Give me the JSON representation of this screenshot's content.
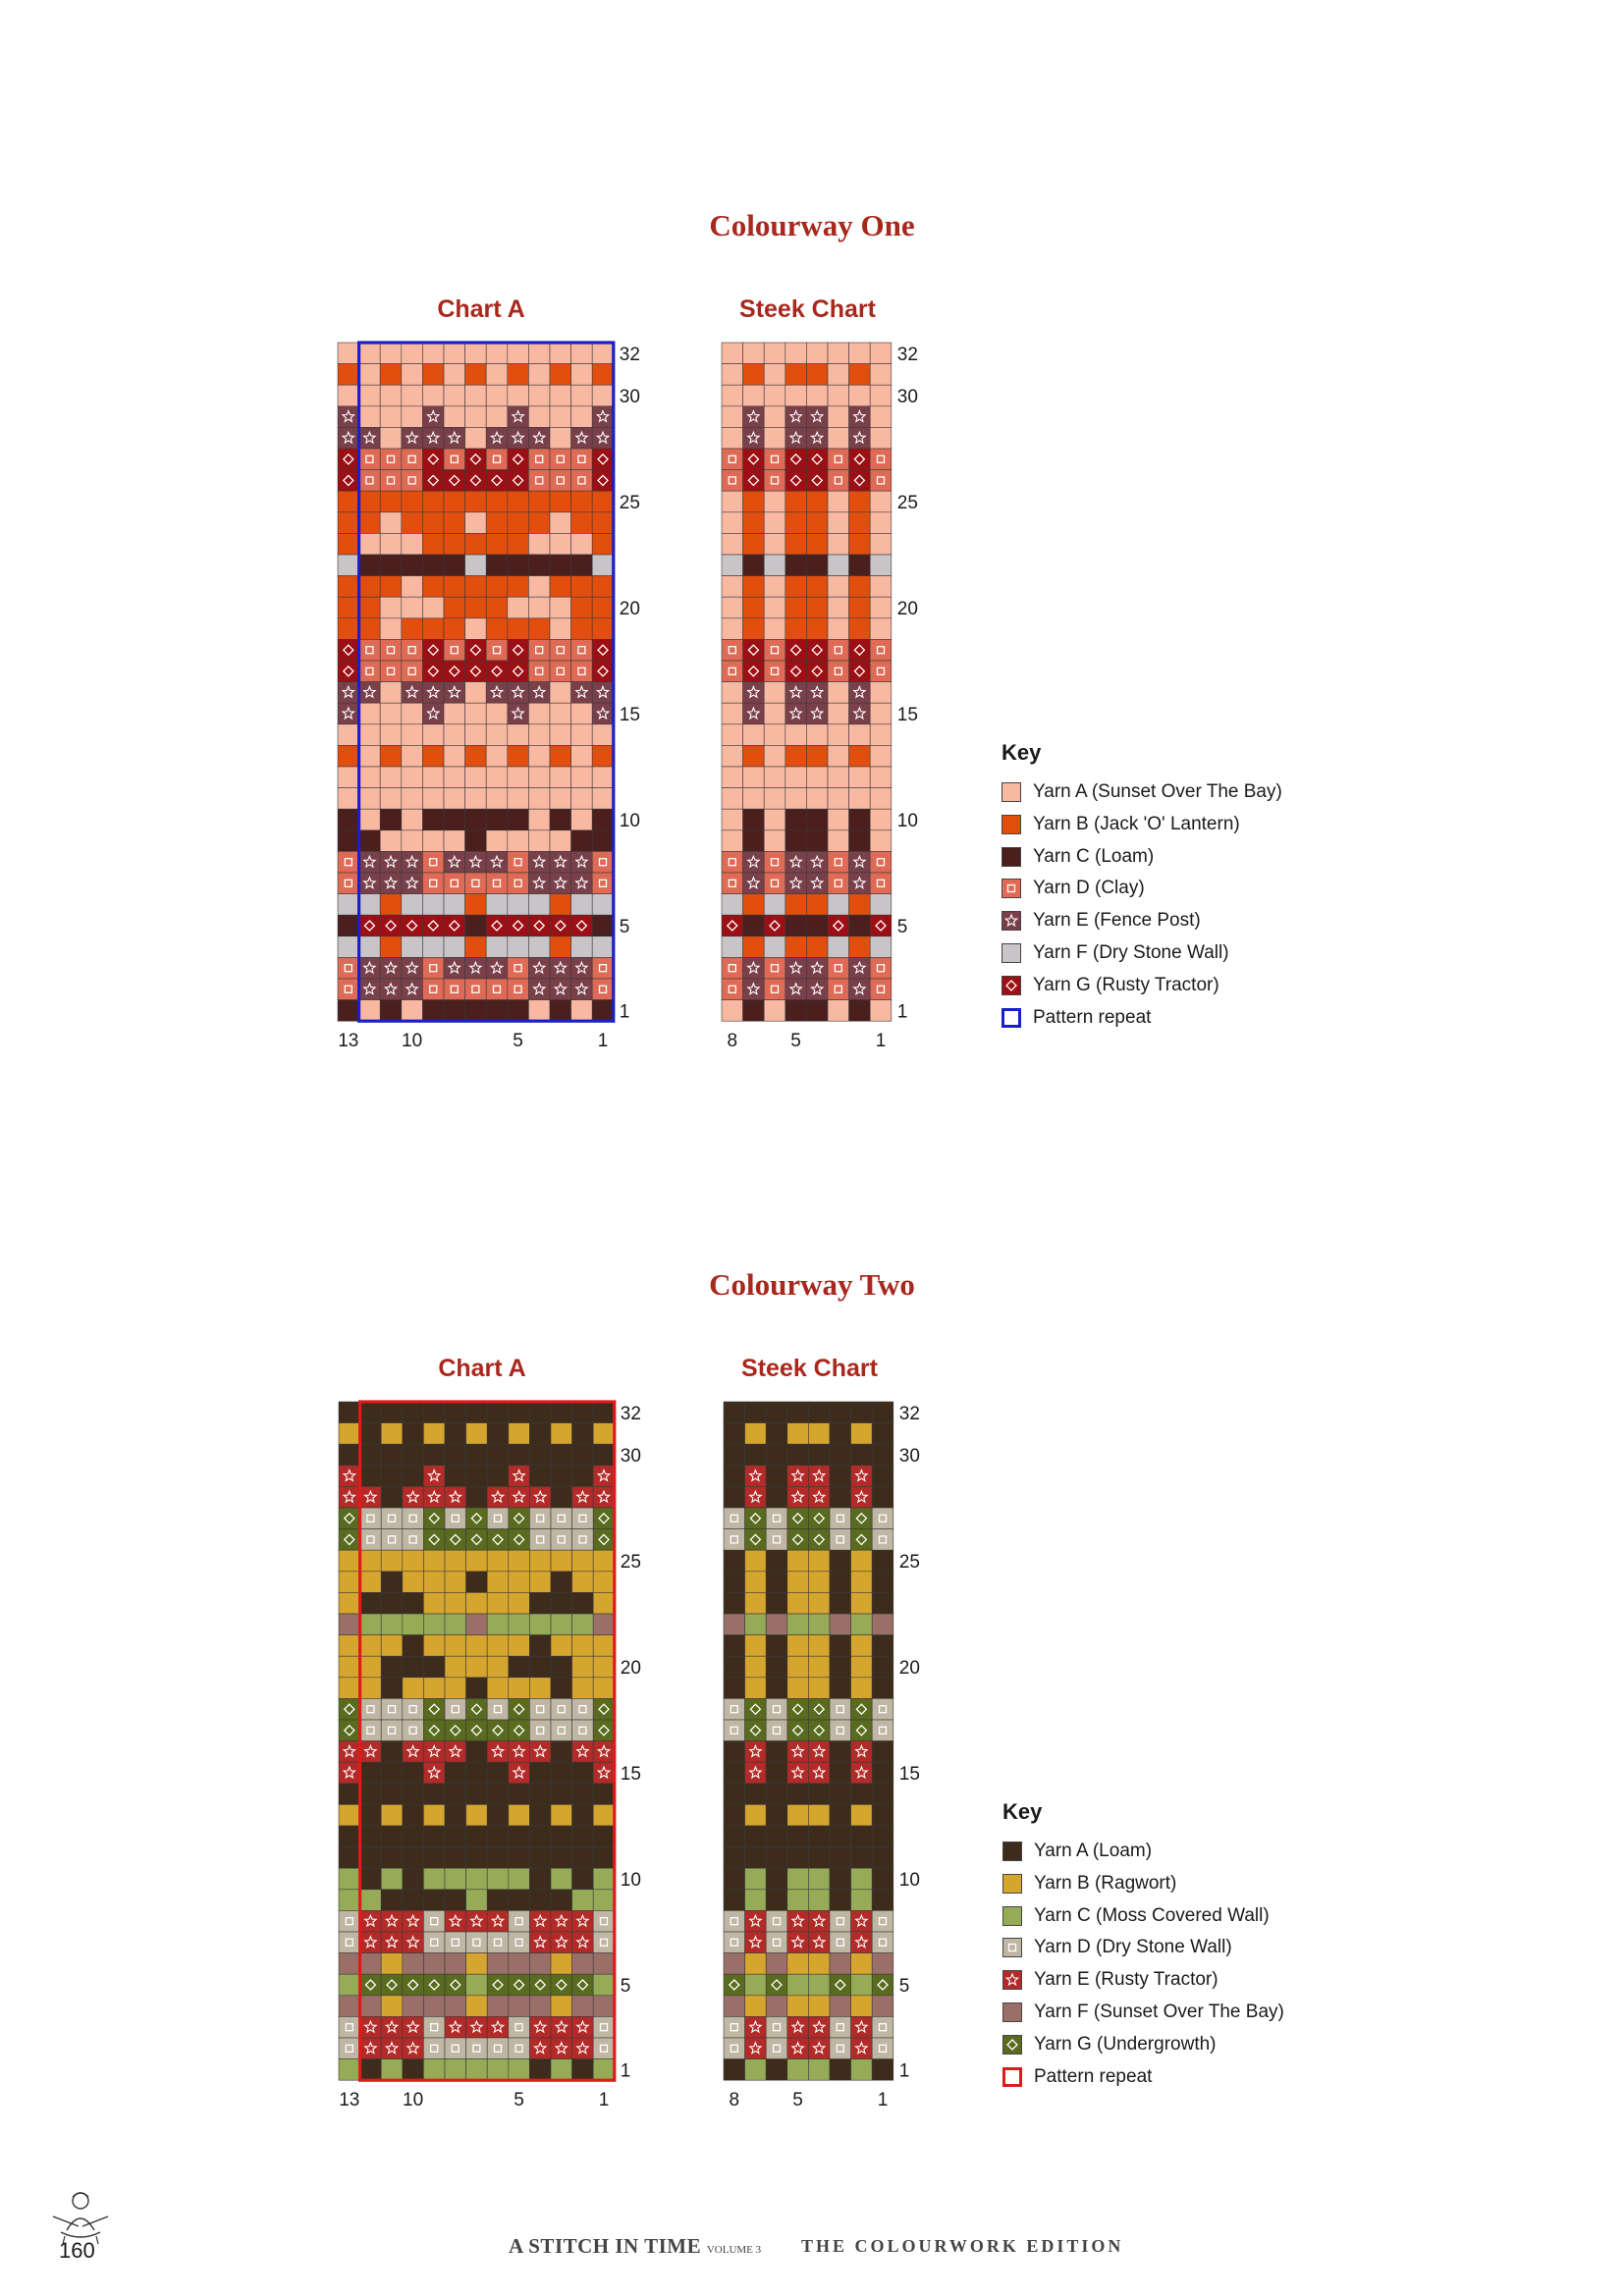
{
  "sections": [
    {
      "title": "Colourway One",
      "chart_a_title": "Chart A",
      "steek_title": "Steek Chart",
      "key_title": "Key",
      "repeat_color": "#1a20c8",
      "colors": {
        "A": "#f8b8a2",
        "B": "#e24e0e",
        "C": "#4a1f1d",
        "D": "#df6a55",
        "E": "#7a4049",
        "F": "#c8c4c8",
        "G": "#9c0f14"
      },
      "symbols": {
        "A": "",
        "B": "",
        "C": "",
        "D": "square",
        "E": "star",
        "F": "",
        "G": "diamond"
      },
      "key": [
        {
          "code": "A",
          "label": "Yarn A (Sunset Over The Bay)"
        },
        {
          "code": "B",
          "label": "Yarn B (Jack 'O' Lantern)"
        },
        {
          "code": "C",
          "label": "Yarn C (Loam)"
        },
        {
          "code": "D",
          "label": "Yarn D (Clay)"
        },
        {
          "code": "E",
          "label": "Yarn E (Fence Post)"
        },
        {
          "code": "F",
          "label": "Yarn F (Dry Stone Wall)"
        },
        {
          "code": "G",
          "label": "Yarn G (Rusty Tractor)"
        },
        {
          "code": "repeat",
          "label": "Pattern repeat"
        }
      ]
    },
    {
      "title": "Colourway Two",
      "chart_a_title": "Chart A",
      "steek_title": "Steek Chart",
      "key_title": "Key",
      "repeat_color": "#e01a1a",
      "colors": {
        "A": "#3d2b1c",
        "B": "#d6a52e",
        "C": "#95ab56",
        "D": "#c0b6a4",
        "E": "#b22b28",
        "F": "#9a6f68",
        "G": "#5a6a1e"
      },
      "symbols": {
        "A": "",
        "B": "",
        "C": "",
        "D": "square",
        "E": "star",
        "F": "",
        "G": "diamond"
      },
      "key": [
        {
          "code": "A",
          "label": "Yarn A (Loam)"
        },
        {
          "code": "B",
          "label": "Yarn B (Ragwort)"
        },
        {
          "code": "C",
          "label": "Yarn C (Moss Covered Wall)"
        },
        {
          "code": "D",
          "label": "Yarn D (Dry Stone Wall)"
        },
        {
          "code": "E",
          "label": "Yarn E (Rusty Tractor)"
        },
        {
          "code": "F",
          "label": "Yarn F (Sunset Over The Bay)"
        },
        {
          "code": "G",
          "label": "Yarn G (Undergrowth)"
        },
        {
          "code": "repeat",
          "label": "Pattern repeat"
        }
      ]
    }
  ],
  "chart": {
    "chart_a_col_labels": [
      "13",
      "10",
      "5",
      "1"
    ],
    "chart_a_col_numbers": [
      13,
      10,
      5,
      1
    ],
    "steek_col_labels": [
      "8",
      "5",
      "1"
    ],
    "steek_col_numbers": [
      8,
      5,
      1
    ],
    "row_labels": [
      "32",
      "30",
      "25",
      "20",
      "15",
      "10",
      "5",
      "1"
    ],
    "row_numbers": [
      32,
      30,
      25,
      20,
      15,
      10,
      5,
      1
    ],
    "chart_a_columns": 13,
    "steek_columns": 8,
    "rows": 32,
    "repeat_columns": 12,
    "chart_a_rows": [
      "AAAAAAAAAAAAA",
      "BABABABABABAB",
      "AAAAAAAAAAAAA",
      "EAAAEAAAEAAAE",
      "EEAEEEAEEEAEE",
      "GDDDGDGDGDDDG",
      "GDDDGGGGGDDDG",
      "BBBBBBBBBBBBB",
      "BBABBBABBBABB",
      "BAAABBBBBAAAB",
      "FCCCCCFCCCCCF",
      "BBBABBBBBABBB",
      "BBAAABBBAAABB",
      "BBABBBABBBABB",
      "GDDDGDGDGDDDG",
      "GDDDGGGGGDDDG",
      "EEAEEEAEEEAEE",
      "EAAAEAAAEAAAE",
      "AAAAAAAAAAAAA",
      "BABABABABABAB",
      "AAAAAAAAAAAAA",
      "AAAAAAAAAAAAA",
      "CACACCCCCACAC",
      "CCAAAACAAAACC",
      "DEEEDEEEDEEED",
      "DEEEDDDDDEEED",
      "FFBFFFBFFFBFF",
      "CGGGGGCGGGGGC",
      "FFBFFFBFFFBFF",
      "DEEEDEEEDEEED",
      "DEEEDDDDDEEED",
      "CACACCCCCACAC"
    ],
    "steek_rows": [
      "AAAAAAAA",
      "ABABBABA",
      "AAAAAAAA",
      "AEAEEAEA",
      "AEAEEAEA",
      "DGDGGDGD",
      "DGDGGDGD",
      "ABABBABA",
      "ABABBABA",
      "ABABBABA",
      "FCFCCFCF",
      "ABABBABA",
      "ABABBABA",
      "ABABBABA",
      "DGDGGDGD",
      "DGDGGDGD",
      "AEAEEAEA",
      "AEAEEAEA",
      "AAAAAAAA",
      "ABABBABA",
      "AAAAAAAA",
      "AAAAAAAA",
      "ACACCACA",
      "ACACCACA",
      "DEDEEDED",
      "DEDEEDED",
      "FBFBBFBF",
      "GCGCCGCG",
      "FBFBBFBF",
      "DEDEEDED",
      "DEDEEDED",
      "ACACCACA"
    ]
  },
  "footer": {
    "page_number": "160",
    "book_title": "A STITCH IN TIME",
    "volume": "VOLUME 3",
    "edition": "THE COLOURWORK EDITION"
  }
}
